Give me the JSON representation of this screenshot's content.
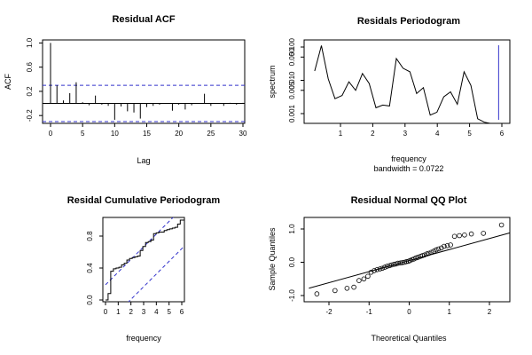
{
  "chart_data": [
    {
      "type": "bar",
      "title": "Residual ACF",
      "xlabel": "Lag",
      "ylabel": "ACF",
      "xlim": [
        0,
        30
      ],
      "ylim": [
        -0.3,
        1.05
      ],
      "xticks": [
        "0",
        "5",
        "10",
        "15",
        "20",
        "25",
        "30"
      ],
      "yticks": [
        "-0.2",
        "0.2",
        "0.6",
        "1.0"
      ],
      "confidence_band": [
        0.3,
        -0.3
      ],
      "lags": [
        0,
        1,
        2,
        3,
        4,
        5,
        6,
        7,
        8,
        9,
        10,
        11,
        12,
        13,
        14,
        15,
        16,
        17,
        18,
        19,
        20,
        21,
        22,
        23,
        24,
        25,
        26,
        27,
        28,
        29,
        30
      ],
      "values": [
        1.0,
        0.3,
        0.05,
        0.17,
        0.35,
        0.02,
        -0.03,
        0.13,
        -0.02,
        -0.04,
        -0.27,
        -0.05,
        -0.13,
        -0.15,
        -0.25,
        -0.06,
        -0.04,
        -0.02,
        0.0,
        -0.12,
        -0.02,
        -0.1,
        -0.03,
        0.0,
        0.16,
        -0.04,
        0.0,
        -0.04,
        0.01,
        -0.02,
        0.01
      ]
    },
    {
      "type": "line",
      "title": "Residals Periodogram",
      "xlabel": "frequency",
      "subtitle": "bandwidth = 0.0722",
      "ylabel": "spectrum",
      "log_y": true,
      "xlim": [
        0.3,
        6.0
      ],
      "ylim": [
        0.0005,
        0.2
      ],
      "xticks": [
        "1",
        "2",
        "3",
        "4",
        "5",
        "6"
      ],
      "yticks": [
        "0.001",
        "0.005",
        "0.010",
        "0.050",
        "0.100"
      ],
      "x": [
        0.2,
        0.41,
        0.62,
        0.83,
        1.05,
        1.26,
        1.47,
        1.68,
        1.89,
        2.1,
        2.31,
        2.52,
        2.73,
        2.94,
        3.15,
        3.36,
        3.57,
        3.78,
        3.99,
        4.2,
        4.41,
        4.62,
        4.83,
        5.04,
        5.25,
        5.46,
        5.67,
        5.88
      ],
      "y": [
        0.019,
        0.11,
        0.011,
        0.0028,
        0.0035,
        0.009,
        0.005,
        0.016,
        0.008,
        0.0015,
        0.0018,
        0.0017,
        0.045,
        0.023,
        0.018,
        0.004,
        0.006,
        0.0009,
        0.0011,
        0.0032,
        0.0045,
        0.0019,
        0.018,
        0.007,
        0.0007,
        0.00055,
        0.0005,
        0.0005
      ],
      "marker_x": 5.9
    },
    {
      "type": "line",
      "title": "Residal Cumulative Periodogram",
      "xlabel": "frequency",
      "xlim": [
        0,
        6.3
      ],
      "ylim": [
        0,
        1
      ],
      "xticks": [
        "0",
        "1",
        "2",
        "3",
        "4",
        "5",
        "6"
      ],
      "yticks": [
        "0.0",
        "0.4",
        "0.8"
      ],
      "x": [
        0,
        0.2,
        0.2,
        0.41,
        0.41,
        0.62,
        0.62,
        0.83,
        0.83,
        1.05,
        1.05,
        1.26,
        1.26,
        1.47,
        1.47,
        1.68,
        1.68,
        1.89,
        1.89,
        2.1,
        2.1,
        2.31,
        2.31,
        2.52,
        2.52,
        2.73,
        2.73,
        2.94,
        2.94,
        3.15,
        3.15,
        3.36,
        3.36,
        3.57,
        3.57,
        3.78,
        3.78,
        3.99,
        3.99,
        4.2,
        4.2,
        4.41,
        4.41,
        4.62,
        4.62,
        4.83,
        4.83,
        5.04,
        5.04,
        5.25,
        5.25,
        5.46,
        5.46,
        5.67,
        5.67,
        5.88,
        5.88,
        6.3
      ],
      "y": [
        0,
        0,
        0.08,
        0.08,
        0.36,
        0.36,
        0.39,
        0.39,
        0.4,
        0.4,
        0.41,
        0.41,
        0.44,
        0.44,
        0.46,
        0.46,
        0.5,
        0.5,
        0.52,
        0.52,
        0.53,
        0.53,
        0.54,
        0.54,
        0.55,
        0.55,
        0.62,
        0.62,
        0.67,
        0.67,
        0.72,
        0.72,
        0.73,
        0.73,
        0.75,
        0.75,
        0.83,
        0.83,
        0.84,
        0.84,
        0.85,
        0.85,
        0.85,
        0.85,
        0.87,
        0.87,
        0.88,
        0.88,
        0.89,
        0.89,
        0.9,
        0.9,
        0.91,
        0.91,
        0.95,
        0.95,
        1.0,
        1.0
      ],
      "band_lines": [
        {
          "x": [
            0,
            6.3
          ],
          "y": [
            0.19,
            1.19
          ]
        },
        {
          "x": [
            0,
            6.3
          ],
          "y": [
            -0.31,
            0.69
          ]
        }
      ]
    },
    {
      "type": "scatter",
      "title": "Residual Normal QQ Plot",
      "xlabel": "Theoretical Quantiles",
      "ylabel": "Sample Quantiles",
      "xlim": [
        -2.5,
        2.5
      ],
      "ylim": [
        -1.1,
        1.2
      ],
      "xticks": [
        "-2",
        "-1",
        "0",
        "1",
        "2"
      ],
      "yticks": [
        "-1.0",
        "0.0",
        "1.0"
      ],
      "x": [
        -2.3,
        -1.85,
        -1.55,
        -1.38,
        -1.25,
        -1.13,
        -1.03,
        -0.95,
        -0.87,
        -0.8,
        -0.73,
        -0.67,
        -0.61,
        -0.55,
        -0.49,
        -0.44,
        -0.38,
        -0.33,
        -0.28,
        -0.22,
        -0.17,
        -0.12,
        -0.07,
        -0.02,
        0.02,
        0.07,
        0.12,
        0.17,
        0.22,
        0.28,
        0.33,
        0.38,
        0.44,
        0.49,
        0.55,
        0.61,
        0.67,
        0.73,
        0.8,
        0.87,
        0.95,
        1.03,
        1.13,
        1.25,
        1.38,
        1.55,
        1.85,
        2.3
      ],
      "y": [
        -0.95,
        -0.85,
        -0.78,
        -0.75,
        -0.55,
        -0.5,
        -0.42,
        -0.3,
        -0.25,
        -0.22,
        -0.2,
        -0.18,
        -0.15,
        -0.12,
        -0.1,
        -0.08,
        -0.06,
        -0.05,
        -0.03,
        -0.02,
        -0.01,
        0.0,
        0.02,
        0.03,
        0.05,
        0.08,
        0.1,
        0.13,
        0.15,
        0.18,
        0.2,
        0.22,
        0.25,
        0.27,
        0.3,
        0.33,
        0.37,
        0.4,
        0.43,
        0.48,
        0.5,
        0.52,
        0.78,
        0.8,
        0.82,
        0.85,
        0.87,
        1.12
      ],
      "qq_line": {
        "x": [
          -2.5,
          2.5
        ],
        "y": [
          -0.78,
          0.88
        ]
      }
    }
  ]
}
